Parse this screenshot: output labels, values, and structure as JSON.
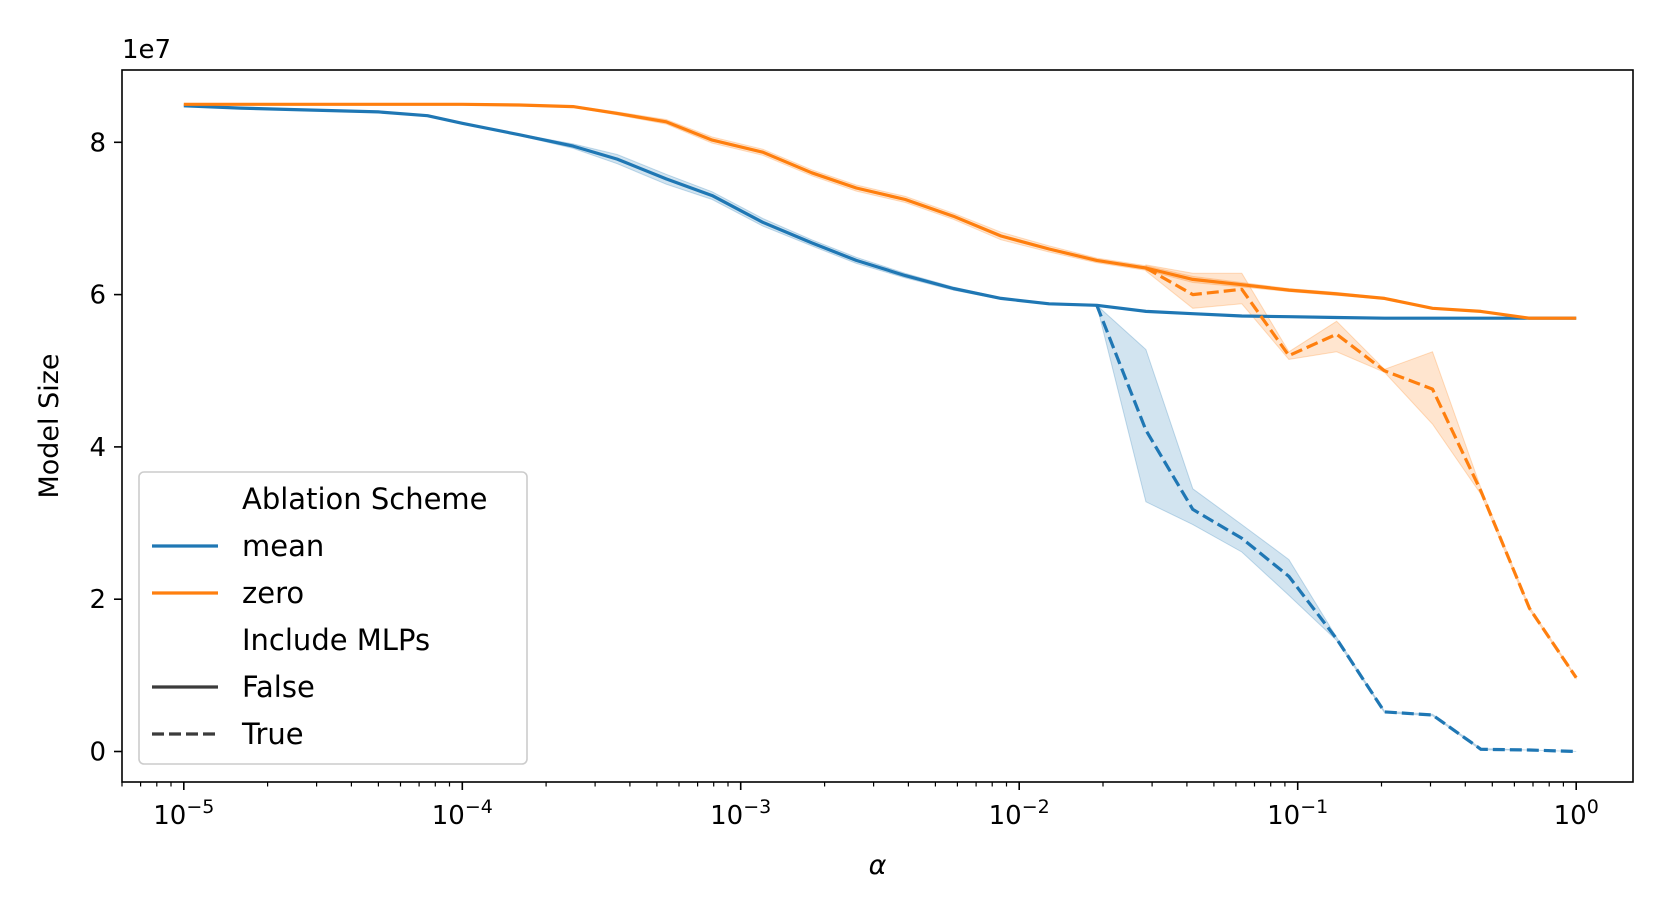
{
  "chart_data": {
    "type": "line",
    "title": "",
    "xlabel": "α",
    "ylabel": "Model Size",
    "xscale": "log",
    "xlim": [
      6e-06,
      1.6
    ],
    "ylim": [
      -0.4,
      8.95
    ],
    "y_offset_label": "1e7",
    "yticks": [
      0,
      2,
      4,
      6,
      8
    ],
    "xtick_exponents": [
      "-5",
      "-4",
      "-3",
      "-2",
      "-1",
      "0"
    ],
    "xtick_base": "10",
    "grid": false,
    "legend_position": "lower-left",
    "legend": {
      "hue_title": "Ablation Scheme",
      "hue_items": [
        {
          "label": "mean",
          "color": "#1f77b4"
        },
        {
          "label": "zero",
          "color": "#ff7f0e"
        }
      ],
      "style_title": "Include MLPs",
      "style_items": [
        {
          "label": "False",
          "dash": "solid"
        },
        {
          "label": "True",
          "dash": "dashed"
        }
      ]
    },
    "series": [
      {
        "name": "mean, False",
        "color": "#1f77b4",
        "dash": "solid",
        "x": [
          1e-05,
          1.6e-05,
          2.5e-05,
          5e-05,
          7.5e-05,
          0.0001,
          0.00016,
          0.00025,
          0.00036,
          0.00054,
          0.00079,
          0.0012,
          0.0018,
          0.0026,
          0.0039,
          0.0058,
          0.0086,
          0.0128,
          0.019,
          0.0285,
          0.042,
          0.063,
          0.093,
          0.138,
          0.205,
          0.305,
          0.455,
          0.68,
          1.0
        ],
        "y": [
          8.48,
          8.45,
          8.43,
          8.4,
          8.35,
          8.25,
          8.1,
          7.95,
          7.78,
          7.52,
          7.3,
          6.95,
          6.68,
          6.45,
          6.25,
          6.08,
          5.95,
          5.88,
          5.86,
          5.78,
          5.75,
          5.72,
          5.71,
          5.7,
          5.69,
          5.69,
          5.69,
          5.69,
          5.69
        ],
        "ci_low": [
          8.48,
          8.45,
          8.43,
          8.4,
          8.35,
          8.25,
          8.09,
          7.92,
          7.72,
          7.45,
          7.25,
          6.9,
          6.64,
          6.41,
          6.22,
          6.06,
          5.94,
          5.87,
          5.85,
          5.78,
          5.75,
          5.72,
          5.71,
          5.7,
          5.69,
          5.69,
          5.69,
          5.69,
          5.69
        ],
        "ci_high": [
          8.48,
          8.45,
          8.43,
          8.4,
          8.35,
          8.25,
          8.11,
          7.98,
          7.84,
          7.58,
          7.35,
          7.0,
          6.72,
          6.49,
          6.28,
          6.1,
          5.96,
          5.89,
          5.87,
          5.78,
          5.75,
          5.72,
          5.71,
          5.7,
          5.69,
          5.69,
          5.69,
          5.69,
          5.69
        ]
      },
      {
        "name": "zero, False",
        "color": "#ff7f0e",
        "dash": "solid",
        "x": [
          1e-05,
          1.6e-05,
          2.5e-05,
          5e-05,
          7.5e-05,
          0.0001,
          0.00016,
          0.00025,
          0.00036,
          0.00054,
          0.00079,
          0.0012,
          0.0018,
          0.0026,
          0.0039,
          0.0058,
          0.0086,
          0.0128,
          0.019,
          0.0285,
          0.042,
          0.063,
          0.093,
          0.138,
          0.205,
          0.305,
          0.455,
          0.68,
          1.0
        ],
        "y": [
          8.5,
          8.5,
          8.5,
          8.5,
          8.5,
          8.5,
          8.49,
          8.47,
          8.38,
          8.27,
          8.03,
          7.87,
          7.6,
          7.4,
          7.25,
          7.03,
          6.77,
          6.6,
          6.45,
          6.35,
          6.2,
          6.13,
          6.06,
          6.01,
          5.95,
          5.82,
          5.78,
          5.69,
          5.69
        ],
        "ci_low": [
          8.5,
          8.5,
          8.5,
          8.5,
          8.5,
          8.5,
          8.49,
          8.46,
          8.36,
          8.24,
          7.99,
          7.83,
          7.56,
          7.36,
          7.21,
          6.99,
          6.72,
          6.56,
          6.42,
          6.32,
          6.16,
          6.1,
          6.04,
          5.99,
          5.94,
          5.81,
          5.77,
          5.69,
          5.69
        ],
        "ci_high": [
          8.5,
          8.5,
          8.5,
          8.5,
          8.5,
          8.5,
          8.49,
          8.48,
          8.4,
          8.3,
          8.07,
          7.91,
          7.64,
          7.44,
          7.29,
          7.07,
          6.82,
          6.64,
          6.48,
          6.38,
          6.24,
          6.16,
          6.08,
          6.03,
          5.96,
          5.83,
          5.79,
          5.69,
          5.69
        ]
      },
      {
        "name": "mean, True",
        "color": "#1f77b4",
        "dash": "dashed",
        "x": [
          0.019,
          0.0285,
          0.042,
          0.063,
          0.093,
          0.138,
          0.205,
          0.305,
          0.455,
          0.68,
          1.0
        ],
        "y": [
          5.86,
          4.22,
          3.18,
          2.8,
          2.3,
          1.48,
          0.52,
          0.48,
          0.03,
          0.02,
          0.0
        ],
        "ci_low": [
          5.86,
          3.28,
          2.98,
          2.62,
          2.05,
          1.46,
          0.51,
          0.47,
          0.02,
          0.02,
          0.0
        ],
        "ci_high": [
          5.86,
          5.28,
          3.45,
          2.98,
          2.52,
          1.5,
          0.53,
          0.49,
          0.04,
          0.02,
          0.0
        ]
      },
      {
        "name": "zero, True",
        "color": "#ff7f0e",
        "dash": "dashed",
        "x": [
          0.0285,
          0.042,
          0.063,
          0.093,
          0.138,
          0.205,
          0.305,
          0.455,
          0.68,
          1.0
        ],
        "y": [
          6.35,
          6.0,
          6.07,
          5.2,
          5.48,
          5.0,
          4.76,
          3.42,
          1.88,
          0.97
        ],
        "ci_low": [
          6.31,
          5.82,
          5.88,
          5.15,
          5.25,
          4.98,
          4.3,
          3.38,
          1.86,
          0.96
        ],
        "ci_high": [
          6.39,
          6.28,
          6.28,
          5.25,
          5.65,
          5.02,
          5.25,
          3.46,
          1.9,
          0.98
        ]
      }
    ]
  }
}
